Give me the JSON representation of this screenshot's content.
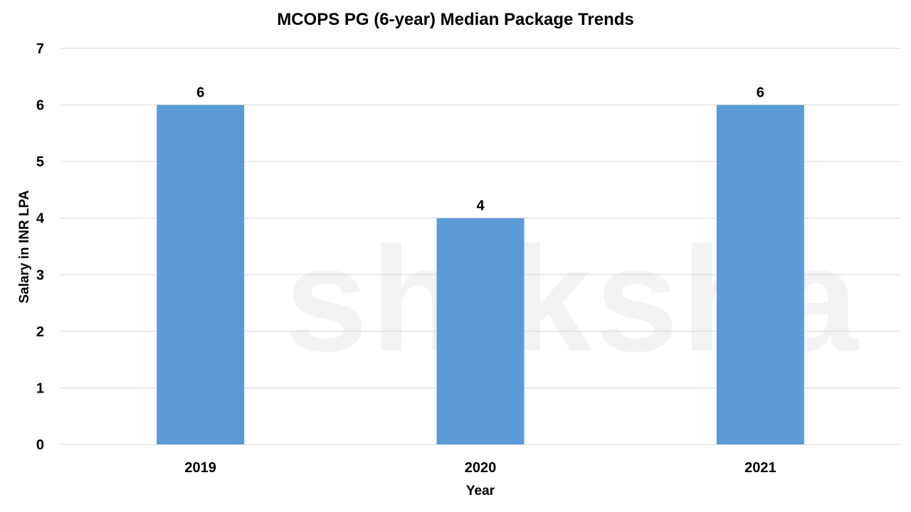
{
  "watermark": "shiksha",
  "chart_data": {
    "type": "bar",
    "title": "MCOPS PG (6-year) Median Package Trends",
    "xlabel": "Year",
    "ylabel": "Salary in INR LPA",
    "categories": [
      "2019",
      "2020",
      "2021"
    ],
    "values": [
      6,
      4,
      6
    ],
    "data_labels": [
      "6",
      "4",
      "6"
    ],
    "ylim": [
      0,
      7
    ],
    "yticks": [
      "0",
      "1",
      "2",
      "3",
      "4",
      "5",
      "6",
      "7"
    ],
    "grid": true,
    "legend": "none",
    "bar_color": "#5B9BD5",
    "grid_color": "#D9D9D9"
  }
}
